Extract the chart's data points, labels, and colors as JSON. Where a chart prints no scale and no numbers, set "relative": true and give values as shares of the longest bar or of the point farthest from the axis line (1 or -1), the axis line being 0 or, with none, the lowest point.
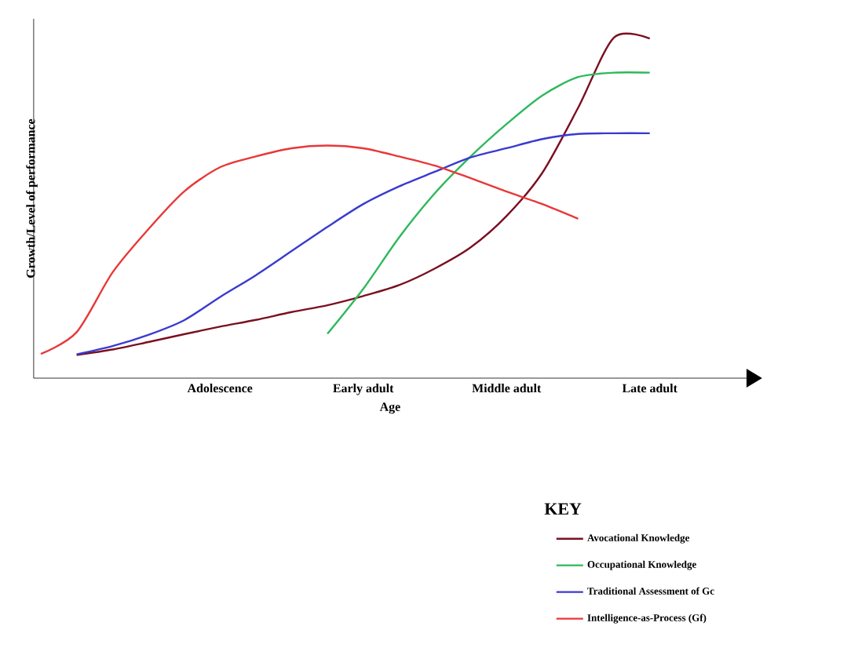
{
  "chart_data": {
    "type": "line",
    "relative": true,
    "xlabel": "Age",
    "ylabel": "Growth/Level of performance",
    "legend_title": "KEY",
    "legend": "bottom right",
    "categories": [
      null,
      null,
      null,
      null,
      null,
      "Adolescence",
      null,
      null,
      null,
      "Early adult",
      null,
      null,
      null,
      "Middle adult",
      null,
      null,
      null,
      "Late adult"
    ],
    "series": [
      {
        "name": "Avocational Knowledge",
        "color": "#7a1020",
        "values": [
          null,
          0.068,
          0.084,
          0.106,
          0.129,
          0.151,
          0.171,
          0.194,
          0.214,
          0.241,
          0.273,
          0.322,
          0.384,
          0.476,
          0.603,
          0.794,
          1,
          0.997
        ]
      },
      {
        "name": "Occupational Knowledge",
        "color": "#2eb85c",
        "values": [
          null,
          null,
          null,
          null,
          null,
          null,
          null,
          null,
          0.13,
          0.262,
          0.413,
          0.543,
          0.651,
          0.746,
          0.83,
          0.884,
          0.897,
          0.897
        ]
      },
      {
        "name": "Traditional Assessment of Gc",
        "color": "#3a3ad0",
        "values": [
          null,
          0.07,
          0.094,
          0.127,
          0.17,
          0.238,
          0.302,
          0.373,
          0.444,
          0.511,
          0.563,
          0.606,
          0.648,
          0.675,
          0.702,
          0.717,
          0.719,
          0.719
        ]
      },
      {
        "name": "Intelligence-as-Process (Gf)",
        "color": "#e83838",
        "values": [
          0.071,
          0.135,
          0.31,
          0.437,
          0.548,
          0.619,
          0.651,
          0.675,
          0.683,
          0.675,
          0.651,
          0.624,
          0.587,
          0.548,
          0.511,
          0.468,
          null,
          null
        ]
      }
    ]
  }
}
